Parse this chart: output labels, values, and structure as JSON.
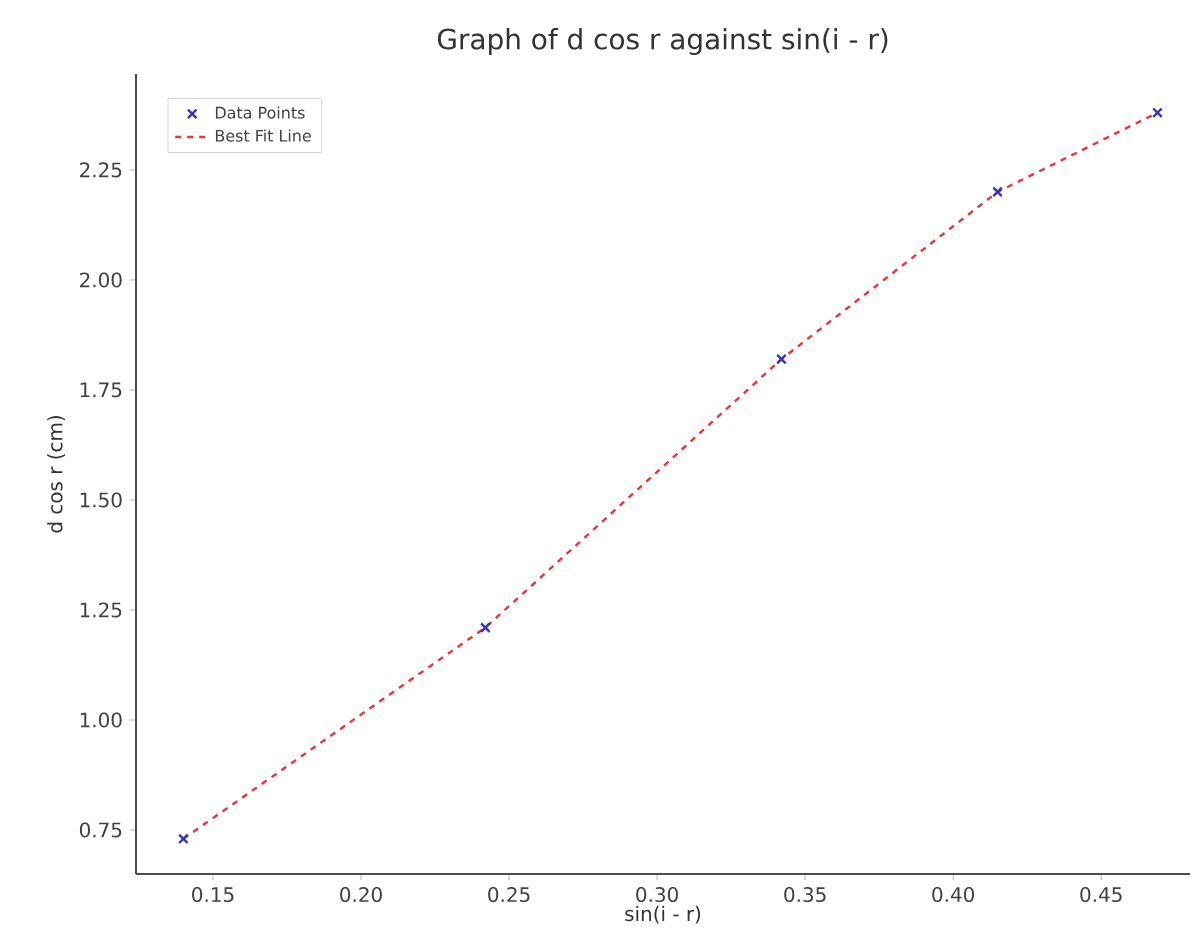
{
  "chart_data": {
    "type": "scatter",
    "title": "Graph of d cos r against sin(i - r)",
    "xlabel": "sin(i - r)",
    "ylabel": "d cos r (cm)",
    "x": [
      0.14,
      0.242,
      0.342,
      0.415,
      0.469
    ],
    "series": [
      {
        "name": "Data Points",
        "color": "#3333bb",
        "marker": "cross",
        "values": [
          0.73,
          1.21,
          1.82,
          2.2,
          2.38
        ]
      },
      {
        "name": "Best Fit Line",
        "type": "line",
        "color": "#ee3333",
        "line_style": "dashed",
        "marker": "none",
        "values": [
          0.73,
          1.21,
          1.82,
          2.2,
          2.38
        ]
      }
    ],
    "xlim": [
      0.124,
      0.48
    ],
    "ylim": [
      0.65,
      2.468
    ],
    "xticks": [
      0.15,
      {
        "value": 0.2,
        "label": "0.20"
      },
      0.25,
      {
        "value": 0.3,
        "label": "0.30"
      },
      0.35,
      {
        "value": 0.4,
        "label": "0.40"
      },
      0.45
    ],
    "yticks": [
      0.75,
      {
        "value": 1,
        "label": "1.00"
      },
      1.25,
      {
        "value": 1.5,
        "label": "1.50"
      },
      1.75,
      {
        "value": 2,
        "label": "2.00"
      },
      2.25
    ],
    "grid": false,
    "legend": "top left"
  }
}
